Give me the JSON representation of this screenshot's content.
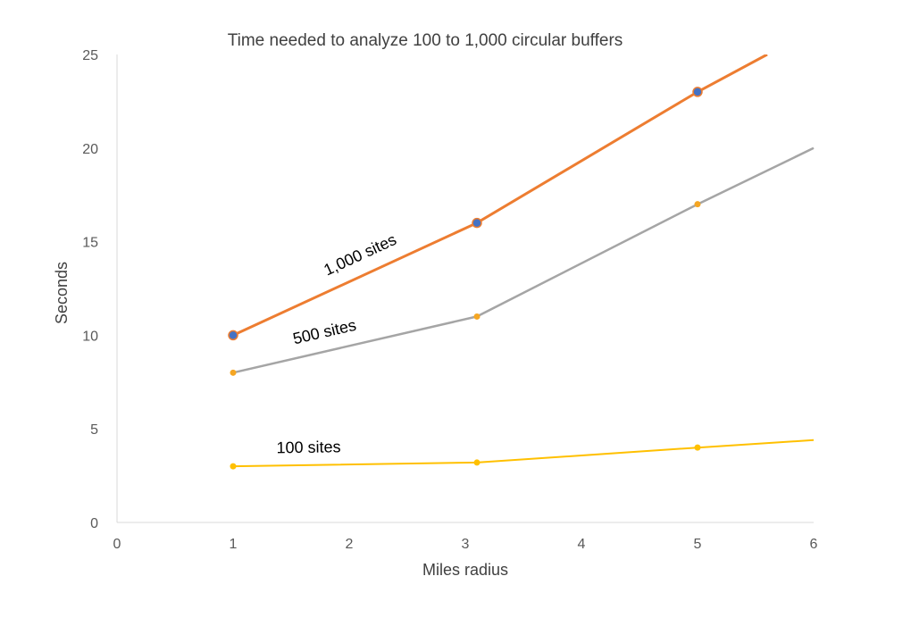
{
  "chart_data": {
    "type": "line",
    "title": "Time needed to analyze 100 to 1,000 circular buffers",
    "xlabel": "Miles radius",
    "ylabel": "Seconds",
    "xlim": [
      0,
      6
    ],
    "ylim": [
      0,
      25
    ],
    "x_ticks": [
      "0",
      "1",
      "2",
      "3",
      "4",
      "5",
      "6"
    ],
    "y_ticks": [
      "0",
      "5",
      "10",
      "15",
      "20",
      "25"
    ],
    "grid": false,
    "legend": "none",
    "series": [
      {
        "name": "1,000 sites",
        "color": "#ED7D31",
        "marker_color": "#4472C4",
        "points": [
          {
            "x": 1,
            "y": 10
          },
          {
            "x": 3.1,
            "y": 16
          },
          {
            "x": 5,
            "y": 23
          },
          {
            "x": 5.6,
            "y": 25
          }
        ],
        "markers": [
          true,
          true,
          true,
          false
        ]
      },
      {
        "name": "500 sites",
        "color": "#A5A5A5",
        "marker_color": "#F5A623",
        "points": [
          {
            "x": 1,
            "y": 8
          },
          {
            "x": 3.1,
            "y": 11
          },
          {
            "x": 5,
            "y": 17
          },
          {
            "x": 6,
            "y": 20
          }
        ],
        "markers": [
          true,
          true,
          true,
          false
        ]
      },
      {
        "name": "100 sites",
        "color": "#FFC000",
        "marker_color": "#FFC000",
        "points": [
          {
            "x": 1,
            "y": 3
          },
          {
            "x": 3.1,
            "y": 3.2
          },
          {
            "x": 5,
            "y": 4
          },
          {
            "x": 6,
            "y": 4.4
          }
        ],
        "markers": [
          true,
          true,
          true,
          false
        ]
      }
    ]
  }
}
